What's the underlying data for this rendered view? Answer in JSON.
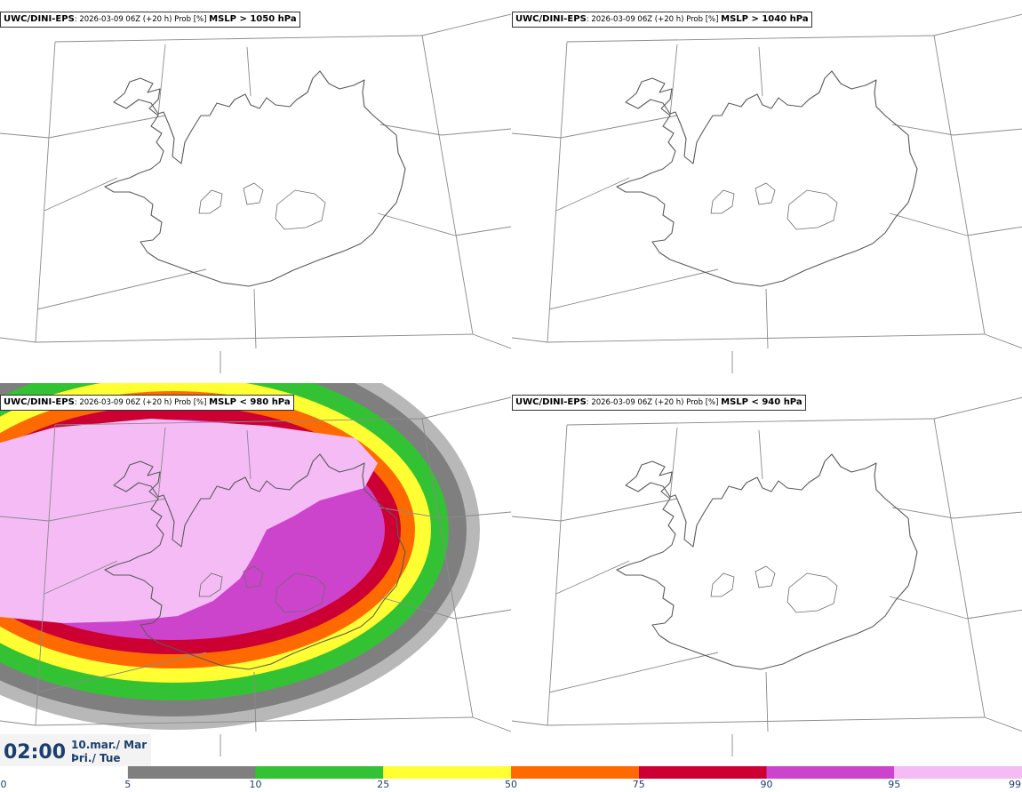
{
  "panels": [
    {
      "model": "UWC/DINI-EPS",
      "meta": ": 2026-03-09 06Z (+20 h) Prob [%] ",
      "param": "MSLP > 1050 hPa",
      "filled": false
    },
    {
      "model": "UWC/DINI-EPS",
      "meta": ": 2026-03-09 06Z (+20 h) Prob [%] ",
      "param": "MSLP > 1040 hPa",
      "filled": false
    },
    {
      "model": "UWC/DINI-EPS",
      "meta": ": 2026-03-09 06Z (+20 h) Prob [%] ",
      "param": "MSLP < 980 hPa",
      "filled": true
    },
    {
      "model": "UWC/DINI-EPS",
      "meta": ": 2026-03-09 06Z (+20 h) Prob [%] ",
      "param": "MSLP < 940 hPa",
      "filled": false
    }
  ],
  "valid_time": {
    "time": "02:00",
    "date": "10.mar./ Mar",
    "weekday": "Þri./ Tue"
  },
  "colorbar": {
    "ticks": [
      "0",
      "5",
      "10",
      "25",
      "50",
      "75",
      "90",
      "95",
      "99"
    ],
    "colors": [
      "#ffffff",
      "#b8b8b8",
      "#7f7f7f",
      "#33c233",
      "#ffff33",
      "#ff6a00",
      "#cc0033",
      "#cc44cc",
      "#f5bbf5"
    ]
  }
}
